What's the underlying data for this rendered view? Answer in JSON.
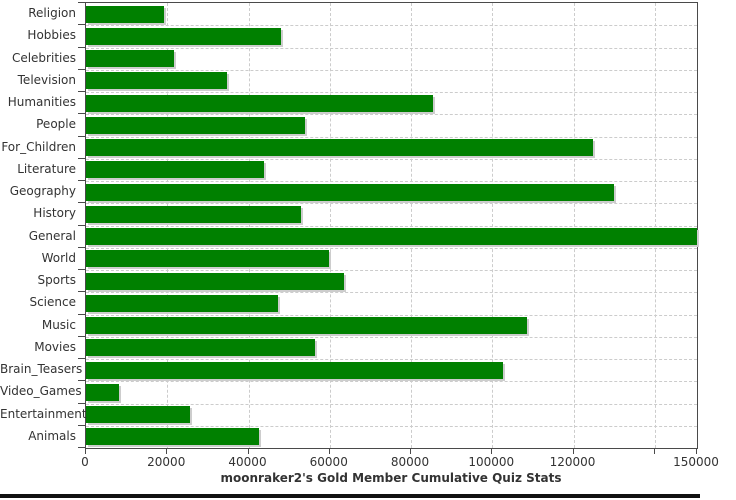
{
  "chart_data": {
    "type": "bar",
    "orientation": "horizontal",
    "title": "moonraker2's Gold Member Cumulative Quiz Stats",
    "categories": [
      "Religion",
      "Hobbies",
      "Celebrities",
      "Television",
      "Humanities",
      "People",
      "For_Children",
      "Literature",
      "Geography",
      "History",
      "General",
      "World",
      "Sports",
      "Science",
      "Music",
      "Movies",
      "Brain_Teasers",
      "Video_Games",
      "Entertainment",
      "Animals"
    ],
    "values": [
      19300,
      48000,
      21600,
      34700,
      85400,
      54000,
      124800,
      43800,
      129900,
      52800,
      150400,
      59800,
      63600,
      47300,
      108600,
      56300,
      102700,
      8200,
      25500,
      42600
    ],
    "xlabel": "",
    "ylabel": "",
    "xlim": [
      0,
      150400
    ],
    "x_ticks": [
      {
        "value": 0,
        "label": "0"
      },
      {
        "value": 20000,
        "label": "20000"
      },
      {
        "value": 40000,
        "label": "40000"
      },
      {
        "value": 60000,
        "label": "60000"
      },
      {
        "value": 80000,
        "label": "80000"
      },
      {
        "value": 100000,
        "label": "100000"
      },
      {
        "value": 120000,
        "label": "120000"
      },
      {
        "value": 140000,
        "label": ""
      },
      {
        "value": 150400,
        "label": "150000"
      }
    ],
    "grid": "dashed",
    "legend": "none",
    "bar_color": "#008000",
    "shadow_color": "#cdcdcd",
    "gridline_color": "#cccccc",
    "axis_color": "#4a4a4a",
    "text_color": "#333333"
  }
}
